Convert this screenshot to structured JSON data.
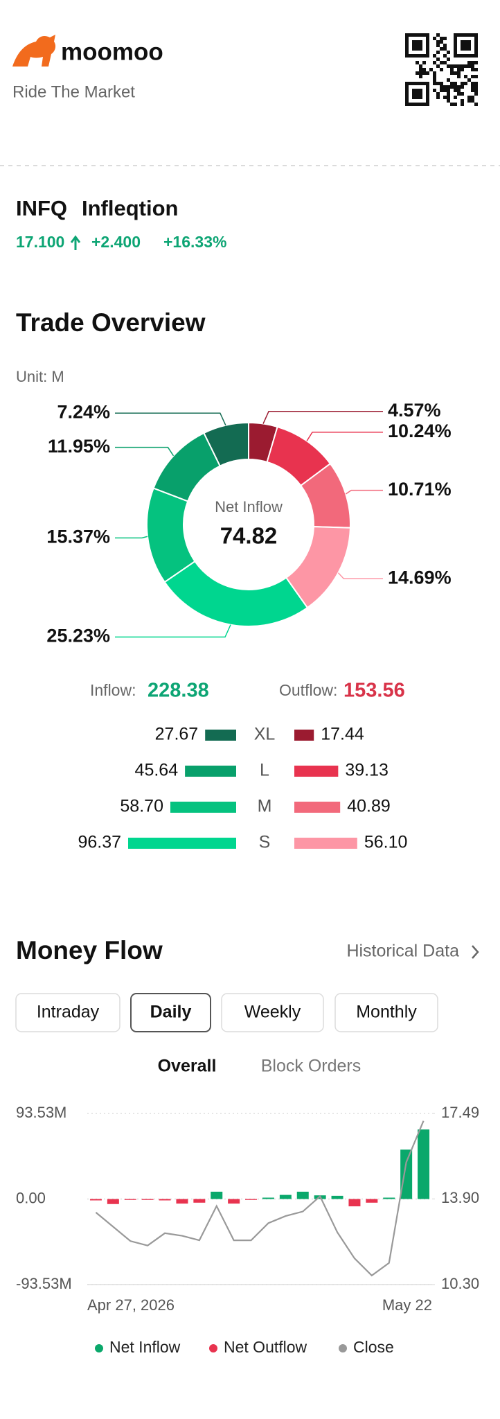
{
  "header": {
    "brand": "moomoo",
    "slogan": "Ride The Market"
  },
  "stock": {
    "symbol": "INFQ",
    "name": "Infleqtion",
    "price": "17.100",
    "change": "+2.400",
    "change_pct": "+16.33%"
  },
  "trade_overview": {
    "title": "Trade Overview",
    "unit": "Unit: M"
  },
  "money_flow": {
    "title": "Money Flow",
    "link": "Historical Data",
    "tabs": [
      "Intraday",
      "Daily",
      "Weekly",
      "Monthly"
    ],
    "active_tab": "Daily",
    "subtabs": [
      "Overall",
      "Block Orders"
    ],
    "active_subtab": "Overall"
  },
  "chart_data": [
    {
      "type": "pie",
      "center_label": "Net Inflow",
      "center_value": 74.82,
      "values": [
        4.57,
        10.24,
        10.71,
        14.69,
        25.23,
        15.37,
        11.95,
        7.24
      ],
      "value_labels": [
        "4.57%",
        "10.24%",
        "10.71%",
        "14.69%",
        "25.23%",
        "15.37%",
        "11.95%",
        "7.24%"
      ],
      "colors": [
        "#9b1b30",
        "#e8334f",
        "#f2697b",
        "#fd96a5",
        "#00d68f",
        "#05c27f",
        "#08a06b",
        "#136b52"
      ]
    },
    {
      "type": "bar",
      "categories": [
        "XL",
        "L",
        "M",
        "S"
      ],
      "series": [
        {
          "name": "Inflow:",
          "total": 228.38,
          "color": "#0da574",
          "values": [
            27.67,
            45.64,
            58.7,
            96.37
          ],
          "value_labels": [
            "27.67",
            "45.64",
            "58.70",
            "96.37"
          ],
          "colors": [
            "#136b52",
            "#08a06b",
            "#05c27f",
            "#00d68f"
          ]
        },
        {
          "name": "Outflow:",
          "total": 153.56,
          "color": "#d83349",
          "values": [
            17.44,
            39.13,
            40.89,
            56.1
          ],
          "value_labels": [
            "17.44",
            "39.13",
            "40.89",
            "56.10"
          ],
          "colors": [
            "#9b1b30",
            "#e8334f",
            "#f2697b",
            "#fd96a5"
          ]
        }
      ]
    },
    {
      "type": "bar+line",
      "categories": [
        "Apr 27, 2026",
        null,
        null,
        null,
        null,
        null,
        null,
        null,
        null,
        null,
        null,
        null,
        null,
        null,
        null,
        null,
        null,
        null,
        null,
        "May 22"
      ],
      "series": [
        {
          "name": "Net Inflow",
          "type": "bar",
          "color": "#0aa86b",
          "values": [
            null,
            null,
            null,
            null,
            null,
            null,
            null,
            8,
            null,
            null,
            1.5,
            4.5,
            8,
            4,
            3.5,
            null,
            null,
            1.5,
            54,
            76
          ]
        },
        {
          "name": "Net Outflow",
          "type": "bar",
          "color": "#e8334f",
          "values": [
            -1.5,
            -5.5,
            -1,
            -1,
            -1.5,
            -5,
            -4,
            null,
            -5,
            -1,
            null,
            null,
            null,
            null,
            null,
            -8,
            -4,
            null,
            null,
            null
          ]
        },
        {
          "name": "Close",
          "type": "line",
          "axis": "y2",
          "color": "#999999",
          "values": [
            13.33,
            12.73,
            12.13,
            11.94,
            12.46,
            12.35,
            12.16,
            13.6,
            12.16,
            12.16,
            12.88,
            13.18,
            13.37,
            14.01,
            12.5,
            11.4,
            10.68,
            11.21,
            15.44,
            17.18
          ]
        }
      ],
      "ylim": [
        -93.53,
        93.53
      ],
      "yticks": [
        {
          "value": 93.53,
          "label": "93.53M"
        },
        {
          "value": 0,
          "label": "0.00"
        },
        {
          "value": -93.53,
          "label": "-93.53M"
        }
      ],
      "y2lim": [
        10.3,
        17.49
      ],
      "y2ticks": [
        17.49,
        {
          "value": 13.9,
          "label": "13.90"
        },
        {
          "value": 10.3,
          "label": "10.30"
        }
      ],
      "grid": true
    }
  ]
}
